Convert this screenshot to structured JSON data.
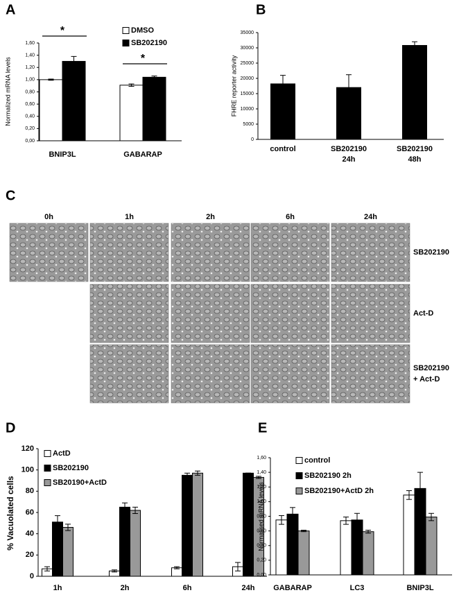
{
  "chart_data": [
    {
      "type": "bar",
      "panel": "A",
      "y_label": "Normalized mRNA levels",
      "categories": [
        "BNIP3L",
        "GABARAP"
      ],
      "series": [
        {
          "name": "DMSO",
          "color": "#ffffff",
          "values": [
            1.0,
            0.91
          ],
          "errors": [
            0.01,
            0.02
          ]
        },
        {
          "name": "SB202190",
          "color": "#000000",
          "values": [
            1.3,
            1.04
          ],
          "errors": [
            0.08,
            0.02
          ]
        }
      ],
      "significance": [
        "*",
        "*"
      ],
      "ylim": [
        0,
        1.6
      ],
      "yticks": [
        {
          "value": 0,
          "label": "0,00"
        },
        {
          "value": 0.2,
          "label": "0,20"
        },
        {
          "value": 0.4,
          "label": "0,40"
        },
        {
          "value": 0.6,
          "label": "0,60"
        },
        {
          "value": 0.8,
          "label": "0,80"
        },
        {
          "value": 1.0,
          "label": "1,00"
        },
        {
          "value": 1.2,
          "label": "1,20"
        },
        {
          "value": 1.4,
          "label": "1,40"
        },
        {
          "value": 1.6,
          "label": "1,60"
        }
      ]
    },
    {
      "type": "bar",
      "panel": "B",
      "y_label": "FHRE reporter activity",
      "categories": [
        [
          "control"
        ],
        [
          "SB202190",
          "24h"
        ],
        [
          "SB202190",
          "48h"
        ]
      ],
      "series": [
        {
          "color": "#000000",
          "values": [
            18200,
            17000,
            30800
          ],
          "errors": [
            2800,
            4200,
            1200
          ]
        }
      ],
      "ylim": [
        0,
        35000
      ],
      "yticks": [
        0,
        5000,
        10000,
        15000,
        20000,
        25000,
        30000,
        35000
      ]
    },
    {
      "type": "bar",
      "panel": "D",
      "y_label": "% Vacuolated cells",
      "categories": [
        "1h",
        "2h",
        "6h",
        "24h"
      ],
      "series": [
        {
          "name": "ActD",
          "color": "#ffffff",
          "values": [
            7,
            5,
            8,
            9
          ],
          "errors": [
            2,
            1,
            1,
            4
          ]
        },
        {
          "name": "SB202190",
          "color": "#000000",
          "values": [
            51,
            65,
            95,
            97
          ],
          "errors": [
            6,
            4,
            2,
            0
          ]
        },
        {
          "name": "SB20190+ActD",
          "color": "#999999",
          "values": [
            46,
            62,
            97,
            93
          ],
          "errors": [
            3,
            3,
            2,
            1
          ]
        }
      ],
      "ylim": [
        0,
        120
      ],
      "yticks": [
        0,
        20,
        40,
        60,
        80,
        100,
        120
      ]
    },
    {
      "type": "bar",
      "panel": "E",
      "y_label": "Normalised mRNA levels",
      "categories": [
        "GABARAP",
        "LC3",
        "BNIP3L"
      ],
      "series": [
        {
          "name": "control",
          "color": "#ffffff",
          "values": [
            0.75,
            0.74,
            1.09
          ],
          "errors": [
            0.06,
            0.05,
            0.06
          ]
        },
        {
          "name": "SB202190 2h",
          "color": "#000000",
          "values": [
            0.83,
            0.75,
            1.18
          ],
          "errors": [
            0.09,
            0.09,
            0.22
          ]
        },
        {
          "name": "SB202190+ActD 2h",
          "color": "#999999",
          "values": [
            0.6,
            0.59,
            0.79
          ],
          "errors": [
            0.01,
            0.02,
            0.05
          ]
        }
      ],
      "ylim": [
        0,
        1.6
      ],
      "yticks": [
        {
          "value": 0,
          "label": "0,00"
        },
        {
          "value": 0.2,
          "label": "0,20"
        },
        {
          "value": 0.4,
          "label": "0,40"
        },
        {
          "value": 0.6,
          "label": "0,60"
        },
        {
          "value": 0.8,
          "label": "0,80"
        },
        {
          "value": 1.0,
          "label": "1,00"
        },
        {
          "value": 1.2,
          "label": "1,20"
        },
        {
          "value": 1.4,
          "label": "1,40"
        },
        {
          "value": 1.6,
          "label": "1,60"
        }
      ]
    }
  ],
  "micrographs": {
    "panel": "C",
    "columns": [
      "0h",
      "1h",
      "2h",
      "6h",
      "24h"
    ],
    "rows": [
      [
        "SB202190"
      ],
      [
        "Act-D"
      ],
      [
        "SB202190",
        "+ Act-D"
      ]
    ]
  }
}
